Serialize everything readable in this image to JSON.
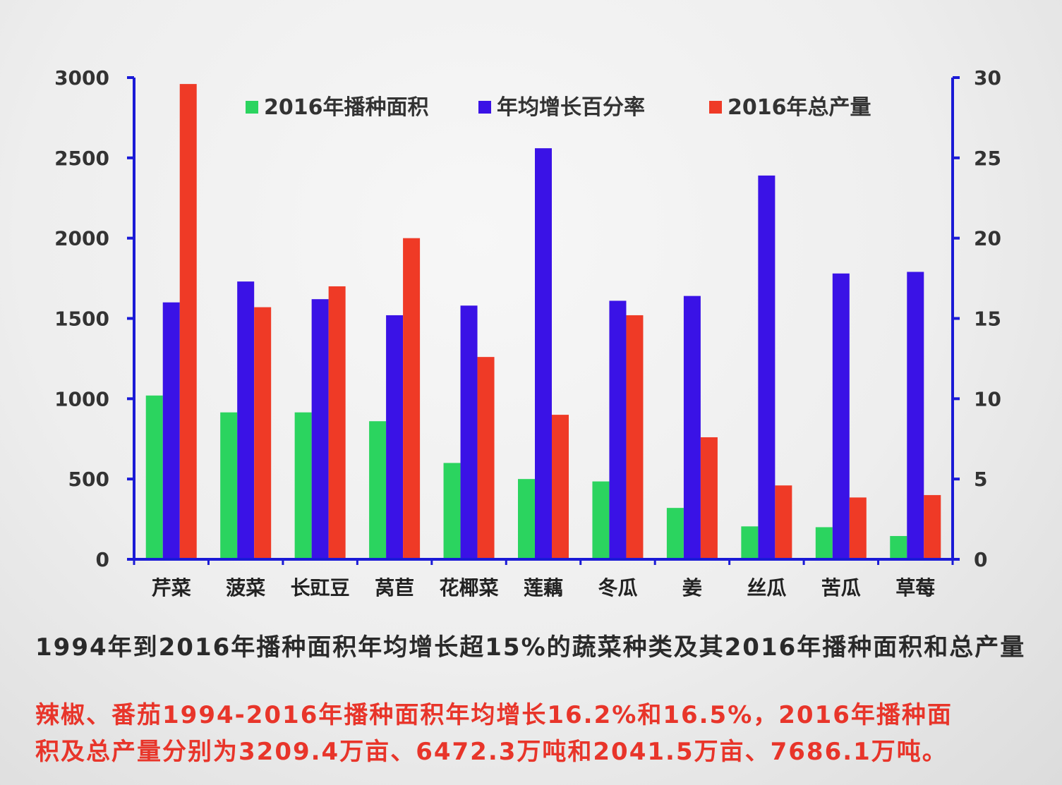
{
  "chart_data": {
    "type": "bar",
    "categories": [
      "芹菜",
      "菠菜",
      "长豇豆",
      "莴苣",
      "花椰菜",
      "莲藕",
      "冬瓜",
      "姜",
      "丝瓜",
      "苦瓜",
      "草莓"
    ],
    "series": [
      {
        "name": "2016年播种面积",
        "axis": "left",
        "color": "#2bd45f",
        "values": [
          1020,
          915,
          915,
          860,
          600,
          500,
          485,
          320,
          205,
          200,
          145
        ]
      },
      {
        "name": "年均增长百分率",
        "axis": "right",
        "color": "#3a12e6",
        "values": [
          16.0,
          17.3,
          16.2,
          15.2,
          15.8,
          25.6,
          16.1,
          16.4,
          23.9,
          17.8,
          17.9
        ]
      },
      {
        "name": "2016年总产量",
        "axis": "left",
        "color": "#ef3a26",
        "values": [
          2960,
          1570,
          1700,
          2000,
          1260,
          900,
          1520,
          760,
          460,
          385,
          400
        ]
      }
    ],
    "y_left": {
      "range": [
        0,
        3000
      ],
      "ticks": [
        0,
        500,
        1000,
        1500,
        2000,
        2500,
        3000
      ]
    },
    "y_right": {
      "range": [
        0,
        30
      ],
      "ticks": [
        0,
        5,
        10,
        15,
        20,
        25,
        30
      ]
    },
    "legend_position": "top-center",
    "grid": false
  },
  "caption": "1994年到2016年播种面积年均增长超15%的蔬菜种类及其2016年播种面积和总产量",
  "note_lines": [
    "辣椒、番茄1994-2016年播种面积年均增长16.2%和16.5%，2016年播种面",
    "积及总产量分别为3209.4万亩、6472.3万吨和2041.5万亩、7686.1万吨。"
  ],
  "colors": {
    "axis": "#1a1ad6",
    "caption": "#2a2a2a",
    "note": "#e8352a"
  }
}
